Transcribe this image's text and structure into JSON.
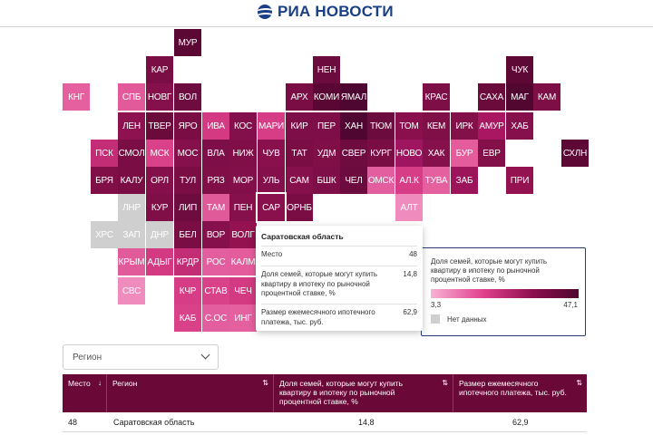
{
  "header": {
    "logo_text": "РИА НОВОСТИ"
  },
  "map": {
    "tiles": [
      {
        "label": "МУР",
        "color": "#5b0834",
        "nodata": false
      },
      {
        "label": "КАР",
        "color": "#7a0d44",
        "nodata": false
      },
      {
        "label": "НЕН",
        "color": "#6c0b3d",
        "nodata": false
      },
      {
        "label": "ЧУК",
        "color": "#5e0836",
        "nodata": false
      },
      {
        "label": "КНГ",
        "color": "#e5609f",
        "nodata": false
      },
      {
        "label": "СПБ",
        "color": "#e25a9a",
        "nodata": false
      },
      {
        "label": "НОВГ",
        "color": "#86104b",
        "nodata": false
      },
      {
        "label": "ВОЛ",
        "color": "#6e0b3f",
        "nodata": false
      },
      {
        "label": "АРХ",
        "color": "#7a0d44",
        "nodata": false
      },
      {
        "label": "КОМИ",
        "color": "#5a0833",
        "nodata": false
      },
      {
        "label": "ЯМАЛ",
        "color": "#4d0730",
        "nodata": false
      },
      {
        "label": "КРАС",
        "color": "#7d0e46",
        "nodata": false
      },
      {
        "label": "САХА",
        "color": "#6a0b3c",
        "nodata": false
      },
      {
        "label": "МАГ",
        "color": "#520731",
        "nodata": false
      },
      {
        "label": "КАМ",
        "color": "#7d0e46",
        "nodata": false
      },
      {
        "label": "ЛЕН",
        "color": "#8e1150",
        "nodata": false
      },
      {
        "label": "ТВЕР",
        "color": "#6a0b3c",
        "nodata": false
      },
      {
        "label": "ЯРО",
        "color": "#7a0d44",
        "nodata": false
      },
      {
        "label": "ИВА",
        "color": "#d33a82",
        "nodata": false
      },
      {
        "label": "КОС",
        "color": "#83104a",
        "nodata": false
      },
      {
        "label": "МАРИ",
        "color": "#d63d86",
        "nodata": false
      },
      {
        "label": "КИР",
        "color": "#7e0e47",
        "nodata": false
      },
      {
        "label": "ПЕР",
        "color": "#7e0e47",
        "nodata": false
      },
      {
        "label": "ХАН",
        "color": "#4f0731",
        "nodata": false
      },
      {
        "label": "ТЮМ",
        "color": "#6c0b3d",
        "nodata": false
      },
      {
        "label": "ТОМ",
        "color": "#8a104d",
        "nodata": false
      },
      {
        "label": "КЕМ",
        "color": "#800f48",
        "nodata": false
      },
      {
        "label": "ИРК",
        "color": "#84104a",
        "nodata": false
      },
      {
        "label": "АМУР",
        "color": "#a91762",
        "nodata": false
      },
      {
        "label": "ХАБ",
        "color": "#86104b",
        "nodata": false
      },
      {
        "label": "ПСК",
        "color": "#c22d75",
        "nodata": false
      },
      {
        "label": "СМОЛ",
        "color": "#7a0d44",
        "nodata": false
      },
      {
        "label": "МСК",
        "color": "#d94289",
        "nodata": false
      },
      {
        "label": "МОС",
        "color": "#86104b",
        "nodata": false
      },
      {
        "label": "ВЛА",
        "color": "#7e0e47",
        "nodata": false
      },
      {
        "label": "НИЖ",
        "color": "#800f48",
        "nodata": false
      },
      {
        "label": "ЧУВ",
        "color": "#8a104d",
        "nodata": false
      },
      {
        "label": "ТАТ",
        "color": "#7a0d44",
        "nodata": false
      },
      {
        "label": "УДМ",
        "color": "#800f48",
        "nodata": false
      },
      {
        "label": "СВЕР",
        "color": "#6e0b3f",
        "nodata": false
      },
      {
        "label": "КУРГ",
        "color": "#7a0d44",
        "nodata": false
      },
      {
        "label": "НОВО",
        "color": "#a01560",
        "nodata": false
      },
      {
        "label": "ХАК",
        "color": "#86104b",
        "nodata": false
      },
      {
        "label": "БУР",
        "color": "#e55c9d",
        "nodata": false
      },
      {
        "label": "ЕВР",
        "color": "#84104a",
        "nodata": false
      },
      {
        "label": "СХЛН",
        "color": "#5e0836",
        "nodata": false
      },
      {
        "label": "БРЯ",
        "color": "#800f48",
        "nodata": false
      },
      {
        "label": "КАЛУ",
        "color": "#7a0d44",
        "nodata": false
      },
      {
        "label": "ОРЛ",
        "color": "#840f4a",
        "nodata": false
      },
      {
        "label": "ТУЛ",
        "color": "#7a0d44",
        "nodata": false
      },
      {
        "label": "РЯЗ",
        "color": "#800f48",
        "nodata": false
      },
      {
        "label": "МОР",
        "color": "#820f49",
        "nodata": false
      },
      {
        "label": "УЛЬ",
        "color": "#840f4a",
        "nodata": false
      },
      {
        "label": "САМ",
        "color": "#86104b",
        "nodata": false
      },
      {
        "label": "БШК",
        "color": "#7e0e47",
        "nodata": false
      },
      {
        "label": "ЧЕЛ",
        "color": "#6c0b3d",
        "nodata": false
      },
      {
        "label": "ОМСК",
        "color": "#e35e9e",
        "nodata": false
      },
      {
        "label": "АЛ.К",
        "color": "#d63d86",
        "nodata": false
      },
      {
        "label": "ТУВА",
        "color": "#e5609f",
        "nodata": false
      },
      {
        "label": "ЗАБ",
        "color": "#9c1459",
        "nodata": false
      },
      {
        "label": "ПРИ",
        "color": "#93124f",
        "nodata": false
      },
      {
        "label": "ЛНР",
        "color": "#cfcfcf",
        "nodata": true
      },
      {
        "label": "КУР",
        "color": "#800f48",
        "nodata": false
      },
      {
        "label": "ЛИП",
        "color": "#6e0b3f",
        "nodata": false
      },
      {
        "label": "ТАМ",
        "color": "#e05a99",
        "nodata": false
      },
      {
        "label": "ПЕН",
        "color": "#86104b",
        "nodata": false
      },
      {
        "label": "САР",
        "color": "#8a104d",
        "nodata": false
      },
      {
        "label": "ОРНБ",
        "color": "#7a0d44",
        "nodata": false
      },
      {
        "label": "АЛТ",
        "color": "#f08cbd",
        "nodata": false
      },
      {
        "label": "ХРС",
        "color": "#cfcfcf",
        "nodata": true
      },
      {
        "label": "ЗАП",
        "color": "#cfcfcf",
        "nodata": true
      },
      {
        "label": "ДНР",
        "color": "#cfcfcf",
        "nodata": true
      },
      {
        "label": "БЕЛ",
        "color": "#7a0d44",
        "nodata": false
      },
      {
        "label": "ВОР",
        "color": "#86104b",
        "nodata": false
      },
      {
        "label": "ВОЛГ",
        "color": "#93124f",
        "nodata": false
      },
      {
        "label": "КРЫМ",
        "color": "#e15b9b",
        "nodata": false
      },
      {
        "label": "АДЫГ",
        "color": "#d33a82",
        "nodata": false
      },
      {
        "label": "КРДР",
        "color": "#c22d75",
        "nodata": false
      },
      {
        "label": "РОС",
        "color": "#e35e9e",
        "nodata": false
      },
      {
        "label": "КАЛМ",
        "color": "#e55c9d",
        "nodata": false
      },
      {
        "label": "СВС",
        "color": "#f08cbd",
        "nodata": false
      },
      {
        "label": "КЧР",
        "color": "#d63d86",
        "nodata": false
      },
      {
        "label": "СТАВ",
        "color": "#d94289",
        "nodata": false
      },
      {
        "label": "ЧЕЧ",
        "color": "#d33a82",
        "nodata": false
      },
      {
        "label": "КАБ",
        "color": "#d94289",
        "nodata": false
      },
      {
        "label": "С.ОС",
        "color": "#e35e9e",
        "nodata": false
      },
      {
        "label": "ИНГ",
        "color": "#e5609f",
        "nodata": false
      }
    ]
  },
  "tooltip": {
    "title": "Саратовская область",
    "rows": [
      {
        "label": "Место",
        "value": "48"
      },
      {
        "label": "Доля семей, которые могут купить квартиру в ипотеку по рыночной процентной ставке, %",
        "value": "14,8"
      },
      {
        "label": "Размер ежемесячного ипотечного платежа, тыс. руб.",
        "value": "62,9"
      }
    ]
  },
  "legend": {
    "title": "Доля семей, которые могут купить квартиру в ипотеку по рыночной процентной ставке, %",
    "min": "3,3",
    "max": "47,1",
    "nodata_label": "Нет данных",
    "colors": {
      "low": "#f7b2d5",
      "high": "#4d0730",
      "nodata": "#cfcfcf"
    }
  },
  "filter": {
    "placeholder": "Регион"
  },
  "table": {
    "columns": [
      {
        "label": "Место",
        "sort": "↓"
      },
      {
        "label": "Регион",
        "sort": "⇅"
      },
      {
        "label": "Доля семей, которые могут купить квартиру в ипотеку по рыночной процентной ставке, %",
        "sort": "⇅"
      },
      {
        "label": "Размер ежемесячного ипотечного платежа, тыс. руб.",
        "sort": "⇅"
      }
    ],
    "rows": [
      {
        "place": "48",
        "region": "Саратовская область",
        "share": "14,8",
        "payment": "62,9"
      }
    ]
  }
}
